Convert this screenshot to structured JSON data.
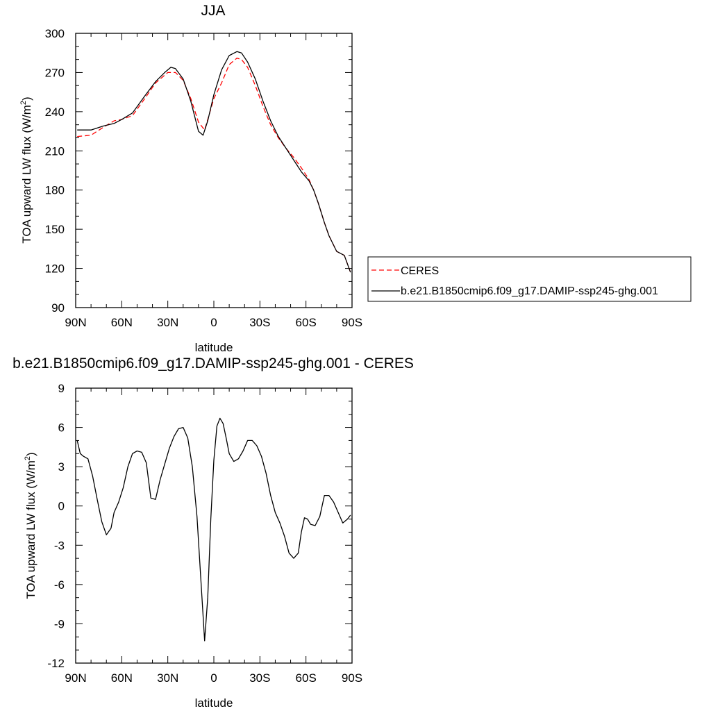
{
  "chart_data": [
    {
      "type": "line",
      "title": "JJA",
      "xlabel": "latitude",
      "ylabel": "TOA upward LW flux (W/m",
      "ylabel_sup": "2",
      "ylabel_end": ")",
      "xlim": [
        90,
        -90
      ],
      "ylim": [
        90,
        300
      ],
      "xticks": [
        90,
        60,
        30,
        0,
        -30,
        -60,
        -90
      ],
      "xtick_labels": [
        "90N",
        "60N",
        "30N",
        "0",
        "30S",
        "60S",
        "90S"
      ],
      "yticks": [
        90,
        120,
        150,
        180,
        210,
        240,
        270,
        300
      ],
      "ytick_labels": [
        "90",
        "120",
        "150",
        "180",
        "210",
        "240",
        "270",
        "300"
      ],
      "legend": "right",
      "series": [
        {
          "name": "CERES",
          "color": "#ff0000",
          "dash": "dashed",
          "x": [
            89,
            80,
            72,
            65,
            60,
            53,
            45,
            38,
            30,
            25,
            20,
            15,
            10,
            6,
            3,
            0,
            -5,
            -10,
            -15,
            -18,
            -22,
            -27,
            -32,
            -37,
            -42,
            -47,
            -52,
            -57,
            -62,
            -65,
            -68,
            -72,
            -75,
            -80,
            -85,
            -89
          ],
          "y": [
            221,
            222,
            228,
            233,
            234,
            237,
            250,
            262,
            270,
            270,
            264,
            250,
            232,
            226,
            238,
            250,
            262,
            276,
            281,
            280,
            274,
            260,
            244,
            230,
            220,
            212,
            205,
            197,
            188,
            180,
            170,
            155,
            145,
            133,
            130,
            117
          ]
        },
        {
          "name": "b.e21.B1850cmip6.f09_g17.DAMIP-ssp245-ghg.001",
          "color": "#000000",
          "dash": "solid",
          "x": [
            89,
            80,
            72,
            65,
            60,
            53,
            45,
            38,
            32,
            28,
            25,
            20,
            15,
            10,
            7,
            4,
            0,
            -5,
            -10,
            -15,
            -18,
            -22,
            -27,
            -32,
            -37,
            -42,
            -47,
            -52,
            -57,
            -62,
            -65,
            -68,
            -72,
            -75,
            -80,
            -85,
            -89
          ],
          "y": [
            226,
            226,
            229,
            231,
            234,
            239,
            252,
            263,
            270,
            274,
            273,
            265,
            248,
            225,
            222,
            233,
            253,
            272,
            283,
            286,
            285,
            278,
            265,
            248,
            233,
            221,
            212,
            203,
            194,
            187,
            180,
            170,
            155,
            145,
            133,
            130,
            117
          ]
        }
      ]
    },
    {
      "type": "line",
      "title": "b.e21.B1850cmip6.f09_g17.DAMIP-ssp245-ghg.001 - CERES",
      "xlabel": "latitude",
      "ylabel": "TOA upward LW flux (W/m",
      "ylabel_sup": "2",
      "ylabel_end": ")",
      "xlim": [
        90,
        -90
      ],
      "ylim": [
        -12,
        9
      ],
      "xticks": [
        90,
        60,
        30,
        0,
        -30,
        -60,
        -90
      ],
      "xtick_labels": [
        "90N",
        "60N",
        "30N",
        "0",
        "30S",
        "60S",
        "90S"
      ],
      "yticks": [
        -12,
        -9,
        -6,
        -3,
        0,
        3,
        6,
        9
      ],
      "ytick_labels": [
        "-12",
        "-9",
        "-6",
        "-3",
        "0",
        "3",
        "6",
        "9"
      ],
      "series": [
        {
          "name": "",
          "color": "#000000",
          "dash": "solid",
          "x": [
            89,
            87,
            85,
            82,
            79,
            76,
            73,
            70,
            67,
            65,
            62,
            59,
            56,
            53,
            50,
            47,
            44,
            41,
            38,
            35,
            32,
            29,
            26,
            23,
            20,
            17,
            14,
            11,
            8,
            6,
            4,
            2,
            0,
            -2,
            -4,
            -6,
            -8,
            -10,
            -13,
            -16,
            -19,
            -22,
            -25,
            -28,
            -31,
            -34,
            -37,
            -40,
            -43,
            -46,
            -49,
            -52,
            -55,
            -57,
            -59,
            -61,
            -63,
            -66,
            -69,
            -72,
            -75,
            -78,
            -81,
            -84,
            -87,
            -89
          ],
          "y": [
            5.0,
            4.0,
            3.8,
            3.6,
            2.3,
            0.5,
            -1.2,
            -2.2,
            -1.7,
            -0.5,
            0.3,
            1.4,
            3.0,
            4.0,
            4.2,
            4.1,
            3.3,
            0.6,
            0.5,
            2.0,
            3.2,
            4.4,
            5.3,
            5.9,
            6.0,
            5.2,
            3.0,
            -0.8,
            -6.5,
            -10.3,
            -7.0,
            -1.0,
            3.5,
            6.1,
            6.7,
            6.3,
            5.2,
            4.0,
            3.4,
            3.6,
            4.2,
            5.0,
            5.0,
            4.6,
            3.8,
            2.5,
            0.8,
            -0.5,
            -1.3,
            -2.3,
            -3.6,
            -4.0,
            -3.6,
            -2.0,
            -0.9,
            -1.0,
            -1.4,
            -1.5,
            -0.8,
            0.8,
            0.8,
            0.3,
            -0.5,
            -1.3,
            -1.0,
            -0.7
          ]
        }
      ]
    }
  ]
}
